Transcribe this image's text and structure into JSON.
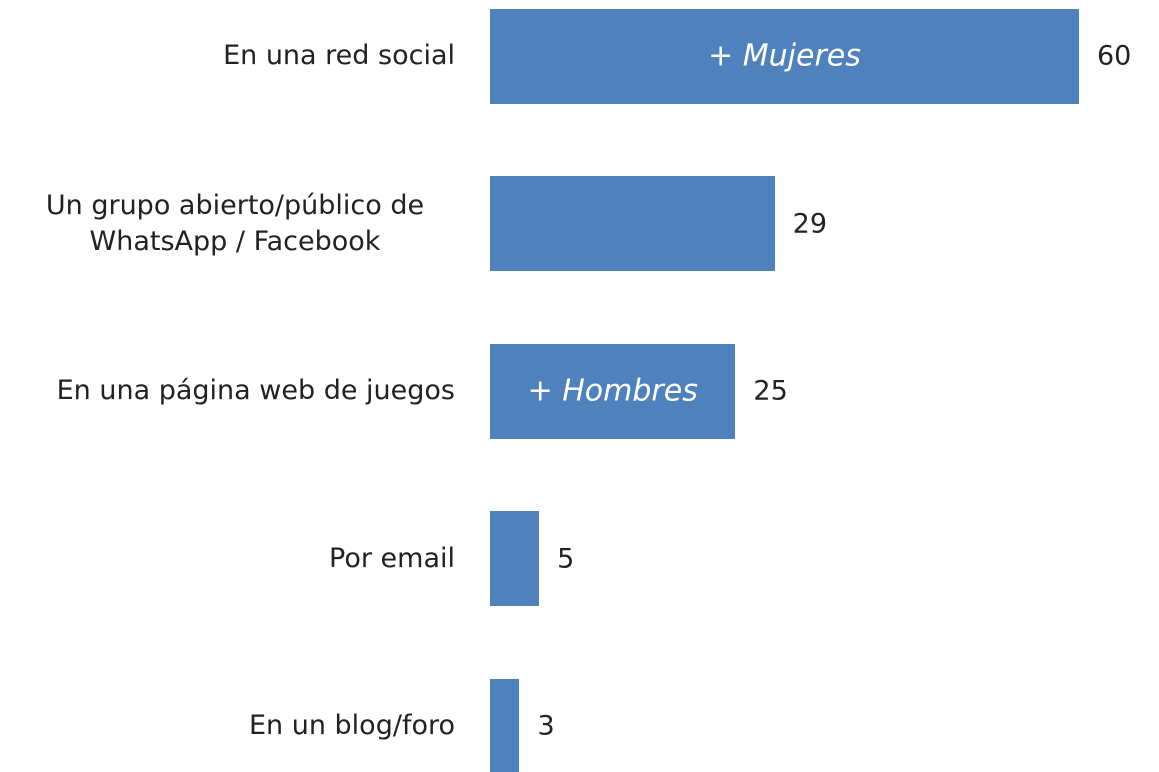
{
  "chart_data": {
    "type": "bar",
    "orientation": "horizontal",
    "categories": [
      "En una red social",
      "Un grupo abierto/público de WhatsApp / Facebook",
      "En una página web de juegos",
      "Por email",
      "En un blog/foro"
    ],
    "values": [
      60,
      29,
      25,
      5,
      3
    ],
    "color": "#4f81bd",
    "annotations": [
      "+ Mujeres",
      "+ Hombres"
    ]
  }
}
